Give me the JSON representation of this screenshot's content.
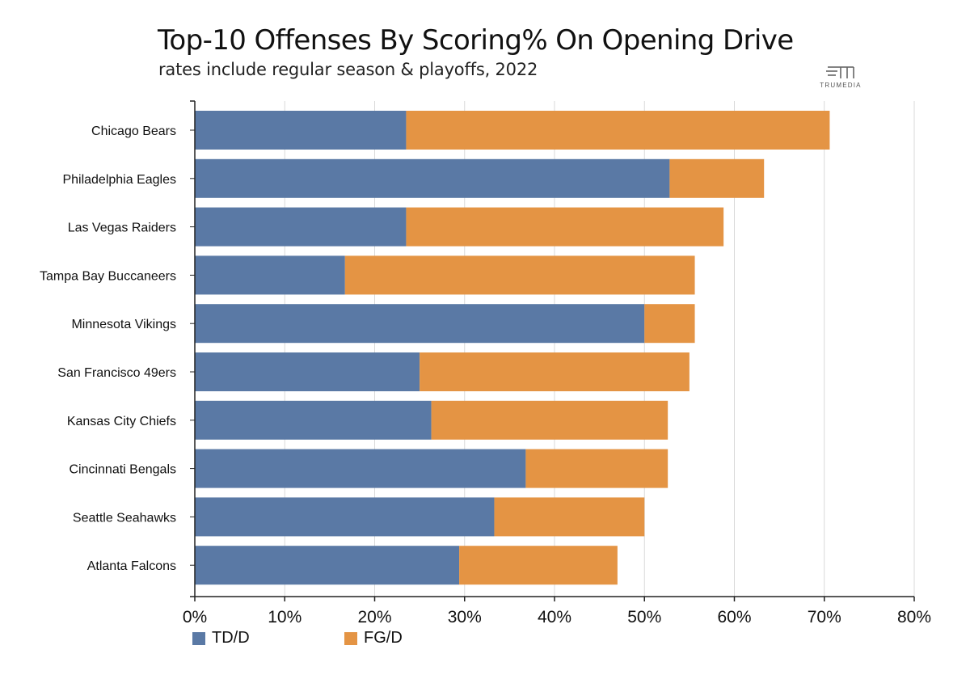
{
  "header": {
    "title": "Top-10 Offenses By Scoring% On Opening Drive",
    "subtitle": "rates include regular season & playoffs, 2022",
    "logo_text": "TRUMEDIA"
  },
  "colors": {
    "td": "#5a79a5",
    "fg": "#e49444",
    "grid": "#d9d9d9",
    "axis": "#222222"
  },
  "chart_data": {
    "type": "bar",
    "orientation": "horizontal",
    "stacked": true,
    "title": "Top-10 Offenses By Scoring% On Opening Drive",
    "subtitle": "rates include regular season & playoffs, 2022",
    "xlabel": "",
    "ylabel": "",
    "xlim": [
      0,
      80
    ],
    "x_ticks": [
      0,
      10,
      20,
      30,
      40,
      50,
      60,
      70,
      80
    ],
    "x_tick_labels": [
      "0%",
      "10%",
      "20%",
      "30%",
      "40%",
      "50%",
      "60%",
      "70%",
      "80%"
    ],
    "grid": "vertical",
    "legend_position": "bottom-left",
    "categories": [
      "Chicago Bears",
      "Philadelphia Eagles",
      "Las Vegas Raiders",
      "Tampa Bay Buccaneers",
      "Minnesota Vikings",
      "San Francisco 49ers",
      "Kansas City Chiefs",
      "Cincinnati Bengals",
      "Seattle Seahawks",
      "Atlanta Falcons"
    ],
    "series": [
      {
        "name": "TD/D",
        "values": [
          23.5,
          52.8,
          23.5,
          16.7,
          50.0,
          25.0,
          26.3,
          36.8,
          33.3,
          29.4
        ]
      },
      {
        "name": "FG/D",
        "values": [
          47.1,
          10.5,
          35.3,
          38.9,
          5.6,
          30.0,
          26.3,
          15.8,
          16.7,
          17.6
        ]
      }
    ]
  }
}
